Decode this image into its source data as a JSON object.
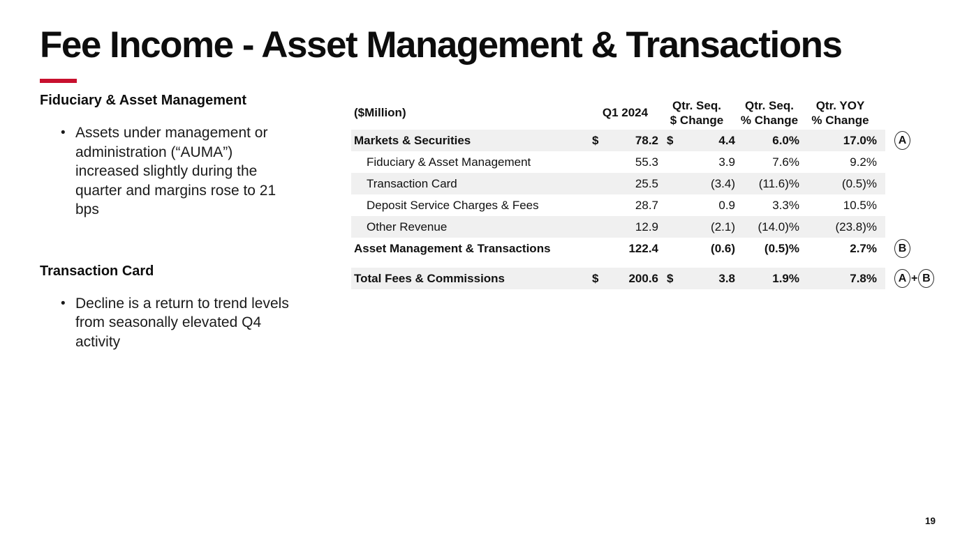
{
  "slide": {
    "title": "Fee Income - Asset Management & Transactions",
    "page_number": "19",
    "accent_color": "#c8102e",
    "stripe_color": "#f0f0f0"
  },
  "left_panel": {
    "sections": [
      {
        "heading": "Fiduciary & Asset Management",
        "bullets": [
          "Assets under management or\nadministration (“AUMA”)\nincreased slightly during the\nquarter and margins rose to 21\nbps"
        ]
      },
      {
        "heading": "Transaction Card",
        "bullets": [
          "Decline is a return to trend levels\nfrom seasonally elevated Q4\nactivity"
        ]
      }
    ]
  },
  "table": {
    "unit_label": "($Million)",
    "headers": {
      "q1": "Q1 2024",
      "seq_dollar": {
        "line1": "Qtr. Seq.",
        "line2": "$ Change"
      },
      "seq_pct": {
        "line1": "Qtr. Seq.",
        "line2": "% Change"
      },
      "yoy_pct": {
        "line1": "Qtr. YOY",
        "line2": "% Change"
      }
    },
    "rows": [
      {
        "label": "Markets & Securities",
        "d1": "$",
        "q1": "78.2",
        "d2": "$",
        "chg": "4.4",
        "pct": "6.0%",
        "yoy": "17.0%",
        "note": "A"
      },
      {
        "label": "Fiduciary & Asset Management",
        "q1": "55.3",
        "chg": "3.9",
        "pct": "7.6%",
        "yoy": "9.2%"
      },
      {
        "label": "Transaction Card",
        "q1": "25.5",
        "chg": "(3.4)",
        "pct": "(11.6)%",
        "yoy": "(0.5)%"
      },
      {
        "label": "Deposit Service Charges & Fees",
        "q1": "28.7",
        "chg": "0.9",
        "pct": "3.3%",
        "yoy": "10.5%"
      },
      {
        "label": "Other Revenue",
        "q1": "12.9",
        "chg": "(2.1)",
        "pct": "(14.0)%",
        "yoy": "(23.8)%"
      },
      {
        "label": "Asset Management & Transactions",
        "q1": "122.4",
        "chg": "(0.6)",
        "pct": "(0.5)%",
        "yoy": "2.7%",
        "note": "B"
      },
      {
        "label": "Total Fees & Commissions",
        "d1": "$",
        "q1": "200.6",
        "d2": "$",
        "chg": "3.8",
        "pct": "1.9%",
        "yoy": "7.8%",
        "note_a": "A",
        "note_plus": "+",
        "note_b": "B"
      }
    ]
  }
}
